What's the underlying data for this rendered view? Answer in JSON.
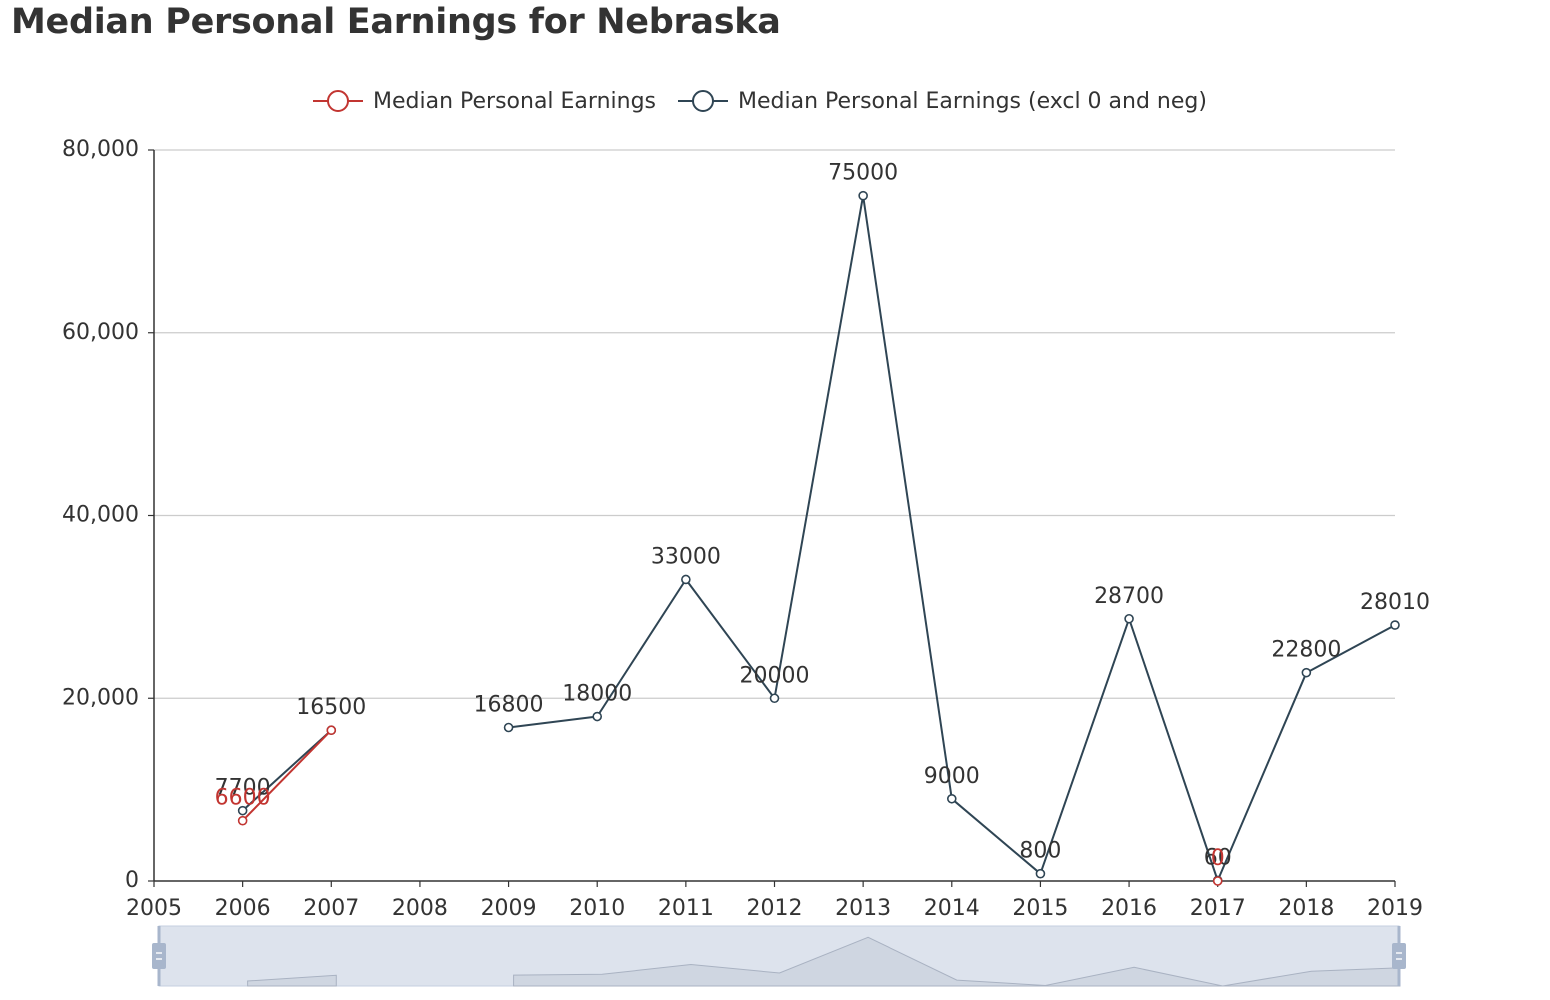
{
  "chart_data": {
    "type": "line",
    "title": "Median Personal Earnings for Nebraska",
    "xlabel": "",
    "ylabel": "",
    "x": [
      2006,
      2007,
      2009,
      2010,
      2011,
      2012,
      2013,
      2014,
      2015,
      2016,
      2017,
      2018,
      2019
    ],
    "xlim": [
      2005,
      2019
    ],
    "ylim": [
      0,
      80000
    ],
    "x_ticks": [
      "2005",
      "2006",
      "2007",
      "2008",
      "2009",
      "2010",
      "2011",
      "2012",
      "2013",
      "2014",
      "2015",
      "2016",
      "2017",
      "2018",
      "2019"
    ],
    "y_ticks": [
      "0",
      "20,000",
      "40,000",
      "60,000",
      "80,000"
    ],
    "grid": true,
    "legend_position": "top-center",
    "data_zoom_slider": true,
    "series": [
      {
        "name": "Median Personal Earnings",
        "color": "#c23531",
        "points": [
          [
            2006,
            6600
          ],
          [
            2007,
            16500
          ],
          [
            2017,
            0
          ]
        ],
        "labels": [
          "6600",
          "",
          "0"
        ]
      },
      {
        "name": "Median Personal Earnings (excl 0 and neg)",
        "color": "#2f4554",
        "points": [
          [
            2006,
            7700
          ],
          [
            2007,
            16500
          ],
          [
            2009,
            16800
          ],
          [
            2010,
            18000
          ],
          [
            2011,
            33000
          ],
          [
            2012,
            20000
          ],
          [
            2013,
            75000
          ],
          [
            2014,
            9000
          ],
          [
            2015,
            800
          ],
          [
            2016,
            28700
          ],
          [
            2017,
            60
          ],
          [
            2018,
            22800
          ],
          [
            2019,
            28010
          ]
        ],
        "labels": [
          "7700",
          "16500",
          "16800",
          "18000",
          "33000",
          "20000",
          "75000",
          "9000",
          "800",
          "28700",
          "60",
          "22800",
          "28010"
        ]
      }
    ]
  }
}
